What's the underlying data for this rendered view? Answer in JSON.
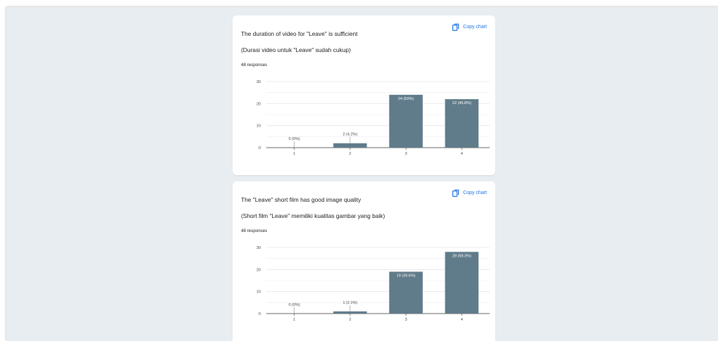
{
  "cards": [
    {
      "title": "The duration of video for \"Leave\" is sufficient",
      "subtitle": "(Durasi video untuk \"Leave\" sudah cukup)",
      "responses": "48 responses",
      "copy_label": "Copy chart",
      "copy_icon": "copy-icon"
    },
    {
      "title": "The \"Leave\" short film has good image quality",
      "subtitle": "(Short film \"Leave\" memiliki kualitas gambar yang baik)",
      "responses": "48 responses",
      "copy_label": "Copy chart",
      "copy_icon": "copy-icon"
    }
  ],
  "colors": {
    "bar": "#607b89",
    "grid": "#e6e6e6",
    "axis": "#333333",
    "text": "#202124",
    "label_outside": "#444444",
    "label_inside": "#ffffff",
    "copy_link": "#1a73e8"
  },
  "chart_data": [
    {
      "type": "bar",
      "categories": [
        "1",
        "2",
        "3",
        "4"
      ],
      "values": [
        0,
        2,
        24,
        22
      ],
      "data_labels": [
        "0 (0%)",
        "2 (4.2%)",
        "24 (50%)",
        "22 (45.8%)"
      ],
      "title": "The duration of video for \"Leave\" is sufficient",
      "subtitle": "(Durasi video untuk \"Leave\" sudah cukup)",
      "ylim": [
        0,
        30
      ],
      "yticks": [
        0,
        10,
        20,
        30
      ],
      "grid": true
    },
    {
      "type": "bar",
      "categories": [
        "1",
        "2",
        "3",
        "4"
      ],
      "values": [
        0,
        1,
        19,
        28
      ],
      "data_labels": [
        "0 (0%)",
        "1 (2.1%)",
        "19 (39.6%)",
        "28 (58.3%)"
      ],
      "title": "The \"Leave\" short film has good image quality",
      "subtitle": "(Short film \"Leave\" memiliki kualitas gambar yang baik)",
      "ylim": [
        0,
        30
      ],
      "yticks": [
        0,
        10,
        20,
        30
      ],
      "grid": true
    }
  ]
}
